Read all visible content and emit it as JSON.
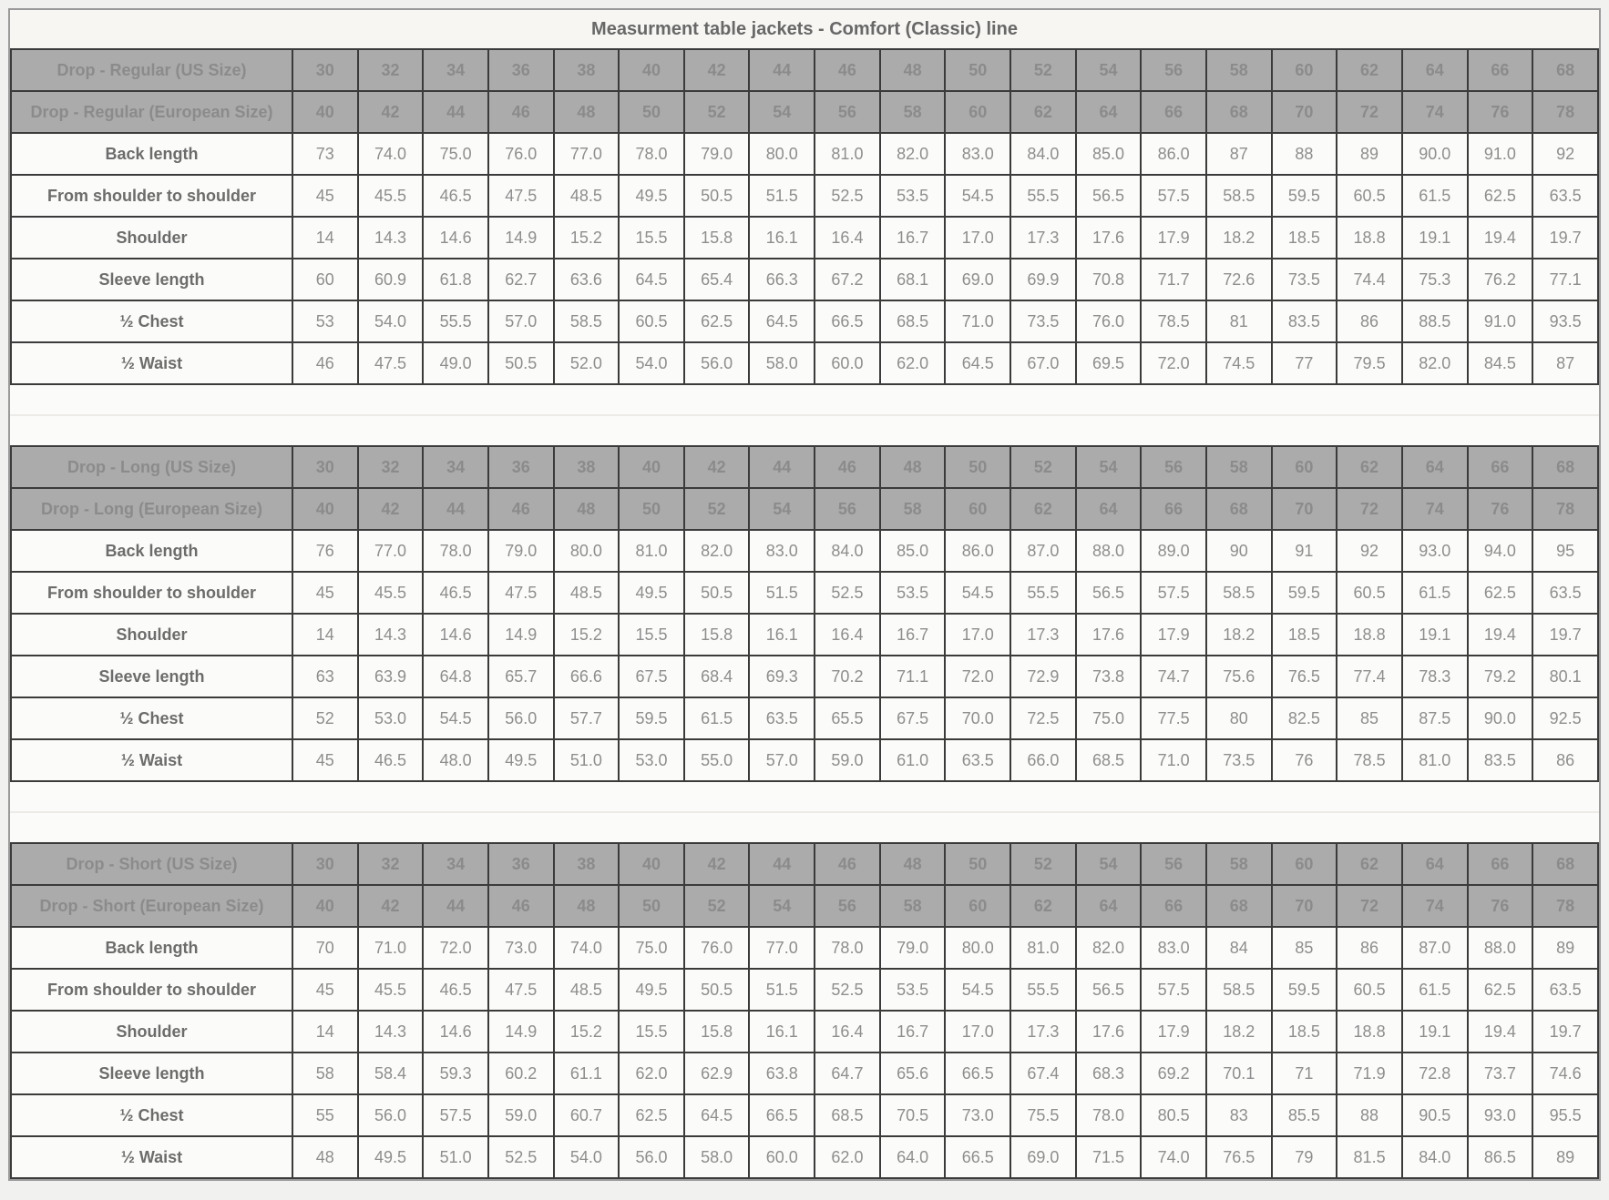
{
  "title": "Measurment table jackets - Comfort (Classic) line",
  "colors": {
    "page_background": "#f1f1ef",
    "card_border": "#9a9a9a",
    "header_background": "#ababab",
    "header_text": "#8b8b8b",
    "cell_border": "#3b3b3b",
    "label_text": "#6c6c6c",
    "value_text": "#8e8e8e",
    "title_text": "#686868"
  },
  "sections": [
    {
      "id": "regular",
      "us_label": "Drop - Regular (US Size)",
      "eu_label": "Drop - Regular (European Size)",
      "us_sizes": [
        "30",
        "32",
        "34",
        "36",
        "38",
        "40",
        "42",
        "44",
        "46",
        "48",
        "50",
        "52",
        "54",
        "56",
        "58",
        "60",
        "62",
        "64",
        "66",
        "68"
      ],
      "eu_sizes": [
        "40",
        "42",
        "44",
        "46",
        "48",
        "50",
        "52",
        "54",
        "56",
        "58",
        "60",
        "62",
        "64",
        "66",
        "68",
        "70",
        "72",
        "74",
        "76",
        "78"
      ],
      "rows": [
        {
          "label": "Back length",
          "values": [
            "73",
            "74.0",
            "75.0",
            "76.0",
            "77.0",
            "78.0",
            "79.0",
            "80.0",
            "81.0",
            "82.0",
            "83.0",
            "84.0",
            "85.0",
            "86.0",
            "87",
            "88",
            "89",
            "90.0",
            "91.0",
            "92"
          ]
        },
        {
          "label": "From shoulder to shoulder",
          "values": [
            "45",
            "45.5",
            "46.5",
            "47.5",
            "48.5",
            "49.5",
            "50.5",
            "51.5",
            "52.5",
            "53.5",
            "54.5",
            "55.5",
            "56.5",
            "57.5",
            "58.5",
            "59.5",
            "60.5",
            "61.5",
            "62.5",
            "63.5"
          ]
        },
        {
          "label": "Shoulder",
          "values": [
            "14",
            "14.3",
            "14.6",
            "14.9",
            "15.2",
            "15.5",
            "15.8",
            "16.1",
            "16.4",
            "16.7",
            "17.0",
            "17.3",
            "17.6",
            "17.9",
            "18.2",
            "18.5",
            "18.8",
            "19.1",
            "19.4",
            "19.7"
          ]
        },
        {
          "label": "Sleeve length",
          "values": [
            "60",
            "60.9",
            "61.8",
            "62.7",
            "63.6",
            "64.5",
            "65.4",
            "66.3",
            "67.2",
            "68.1",
            "69.0",
            "69.9",
            "70.8",
            "71.7",
            "72.6",
            "73.5",
            "74.4",
            "75.3",
            "76.2",
            "77.1"
          ]
        },
        {
          "label": "½ Chest",
          "values": [
            "53",
            "54.0",
            "55.5",
            "57.0",
            "58.5",
            "60.5",
            "62.5",
            "64.5",
            "66.5",
            "68.5",
            "71.0",
            "73.5",
            "76.0",
            "78.5",
            "81",
            "83.5",
            "86",
            "88.5",
            "91.0",
            "93.5"
          ]
        },
        {
          "label": "½ Waist",
          "values": [
            "46",
            "47.5",
            "49.0",
            "50.5",
            "52.0",
            "54.0",
            "56.0",
            "58.0",
            "60.0",
            "62.0",
            "64.5",
            "67.0",
            "69.5",
            "72.0",
            "74.5",
            "77",
            "79.5",
            "82.0",
            "84.5",
            "87"
          ]
        }
      ]
    },
    {
      "id": "long",
      "us_label": "Drop - Long (US Size)",
      "eu_label": "Drop - Long (European Size)",
      "us_sizes": [
        "30",
        "32",
        "34",
        "36",
        "38",
        "40",
        "42",
        "44",
        "46",
        "48",
        "50",
        "52",
        "54",
        "56",
        "58",
        "60",
        "62",
        "64",
        "66",
        "68"
      ],
      "eu_sizes": [
        "40",
        "42",
        "44",
        "46",
        "48",
        "50",
        "52",
        "54",
        "56",
        "58",
        "60",
        "62",
        "64",
        "66",
        "68",
        "70",
        "72",
        "74",
        "76",
        "78"
      ],
      "rows": [
        {
          "label": "Back length",
          "values": [
            "76",
            "77.0",
            "78.0",
            "79.0",
            "80.0",
            "81.0",
            "82.0",
            "83.0",
            "84.0",
            "85.0",
            "86.0",
            "87.0",
            "88.0",
            "89.0",
            "90",
            "91",
            "92",
            "93.0",
            "94.0",
            "95"
          ]
        },
        {
          "label": "From shoulder to shoulder",
          "values": [
            "45",
            "45.5",
            "46.5",
            "47.5",
            "48.5",
            "49.5",
            "50.5",
            "51.5",
            "52.5",
            "53.5",
            "54.5",
            "55.5",
            "56.5",
            "57.5",
            "58.5",
            "59.5",
            "60.5",
            "61.5",
            "62.5",
            "63.5"
          ]
        },
        {
          "label": "Shoulder",
          "values": [
            "14",
            "14.3",
            "14.6",
            "14.9",
            "15.2",
            "15.5",
            "15.8",
            "16.1",
            "16.4",
            "16.7",
            "17.0",
            "17.3",
            "17.6",
            "17.9",
            "18.2",
            "18.5",
            "18.8",
            "19.1",
            "19.4",
            "19.7"
          ]
        },
        {
          "label": "Sleeve length",
          "values": [
            "63",
            "63.9",
            "64.8",
            "65.7",
            "66.6",
            "67.5",
            "68.4",
            "69.3",
            "70.2",
            "71.1",
            "72.0",
            "72.9",
            "73.8",
            "74.7",
            "75.6",
            "76.5",
            "77.4",
            "78.3",
            "79.2",
            "80.1"
          ]
        },
        {
          "label": "½ Chest",
          "values": [
            "52",
            "53.0",
            "54.5",
            "56.0",
            "57.7",
            "59.5",
            "61.5",
            "63.5",
            "65.5",
            "67.5",
            "70.0",
            "72.5",
            "75.0",
            "77.5",
            "80",
            "82.5",
            "85",
            "87.5",
            "90.0",
            "92.5"
          ]
        },
        {
          "label": "½ Waist",
          "values": [
            "45",
            "46.5",
            "48.0",
            "49.5",
            "51.0",
            "53.0",
            "55.0",
            "57.0",
            "59.0",
            "61.0",
            "63.5",
            "66.0",
            "68.5",
            "71.0",
            "73.5",
            "76",
            "78.5",
            "81.0",
            "83.5",
            "86"
          ]
        }
      ]
    },
    {
      "id": "short",
      "us_label": "Drop - Short (US Size)",
      "eu_label": "Drop - Short (European Size)",
      "us_sizes": [
        "30",
        "32",
        "34",
        "36",
        "38",
        "40",
        "42",
        "44",
        "46",
        "48",
        "50",
        "52",
        "54",
        "56",
        "58",
        "60",
        "62",
        "64",
        "66",
        "68"
      ],
      "eu_sizes": [
        "40",
        "42",
        "44",
        "46",
        "48",
        "50",
        "52",
        "54",
        "56",
        "58",
        "60",
        "62",
        "64",
        "66",
        "68",
        "70",
        "72",
        "74",
        "76",
        "78"
      ],
      "rows": [
        {
          "label": "Back length",
          "values": [
            "70",
            "71.0",
            "72.0",
            "73.0",
            "74.0",
            "75.0",
            "76.0",
            "77.0",
            "78.0",
            "79.0",
            "80.0",
            "81.0",
            "82.0",
            "83.0",
            "84",
            "85",
            "86",
            "87.0",
            "88.0",
            "89"
          ]
        },
        {
          "label": "From shoulder to shoulder",
          "values": [
            "45",
            "45.5",
            "46.5",
            "47.5",
            "48.5",
            "49.5",
            "50.5",
            "51.5",
            "52.5",
            "53.5",
            "54.5",
            "55.5",
            "56.5",
            "57.5",
            "58.5",
            "59.5",
            "60.5",
            "61.5",
            "62.5",
            "63.5"
          ]
        },
        {
          "label": "Shoulder",
          "values": [
            "14",
            "14.3",
            "14.6",
            "14.9",
            "15.2",
            "15.5",
            "15.8",
            "16.1",
            "16.4",
            "16.7",
            "17.0",
            "17.3",
            "17.6",
            "17.9",
            "18.2",
            "18.5",
            "18.8",
            "19.1",
            "19.4",
            "19.7"
          ]
        },
        {
          "label": "Sleeve length",
          "values": [
            "58",
            "58.4",
            "59.3",
            "60.2",
            "61.1",
            "62.0",
            "62.9",
            "63.8",
            "64.7",
            "65.6",
            "66.5",
            "67.4",
            "68.3",
            "69.2",
            "70.1",
            "71",
            "71.9",
            "72.8",
            "73.7",
            "74.6"
          ]
        },
        {
          "label": "½ Chest",
          "values": [
            "55",
            "56.0",
            "57.5",
            "59.0",
            "60.7",
            "62.5",
            "64.5",
            "66.5",
            "68.5",
            "70.5",
            "73.0",
            "75.5",
            "78.0",
            "80.5",
            "83",
            "85.5",
            "88",
            "90.5",
            "93.0",
            "95.5"
          ]
        },
        {
          "label": "½ Waist",
          "values": [
            "48",
            "49.5",
            "51.0",
            "52.5",
            "54.0",
            "56.0",
            "58.0",
            "60.0",
            "62.0",
            "64.0",
            "66.5",
            "69.0",
            "71.5",
            "74.0",
            "76.5",
            "79",
            "81.5",
            "84.0",
            "86.5",
            "89"
          ]
        }
      ]
    }
  ]
}
